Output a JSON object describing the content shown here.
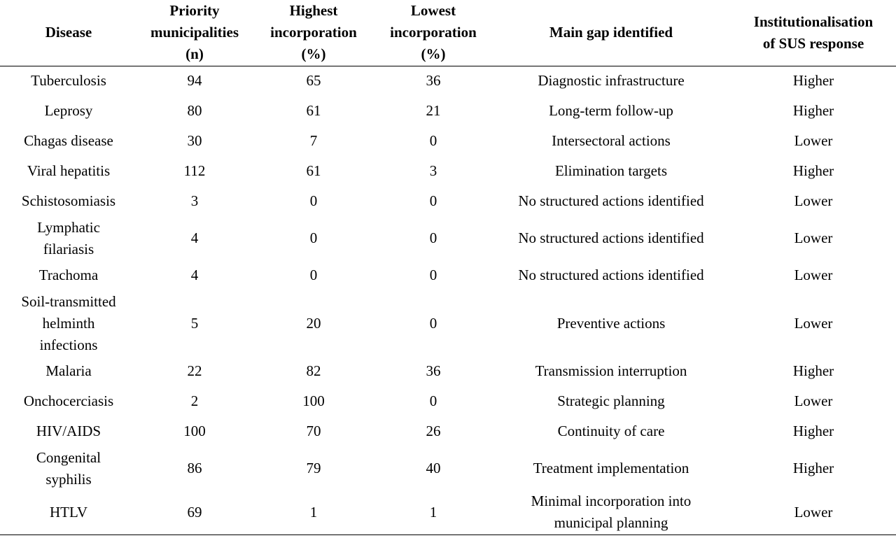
{
  "columns": [
    {
      "key": "disease",
      "label": "Disease"
    },
    {
      "key": "priority",
      "label": "Priority\nmunicipalities\n(n)"
    },
    {
      "key": "highest",
      "label": "Highest\nincorporation\n(%)"
    },
    {
      "key": "lowest",
      "label": "Lowest\nincorporation\n(%)"
    },
    {
      "key": "gap",
      "label": "Main gap identified"
    },
    {
      "key": "inst",
      "label": "Institutionalisation\nof SUS response"
    }
  ],
  "rows": [
    {
      "disease": "Tuberculosis",
      "priority": "94",
      "highest": "65",
      "lowest": "36",
      "gap": "Diagnostic infrastructure",
      "inst": "Higher"
    },
    {
      "disease": "Leprosy",
      "priority": "80",
      "highest": "61",
      "lowest": "21",
      "gap": "Long-term follow-up",
      "inst": "Higher"
    },
    {
      "disease": "Chagas disease",
      "priority": "30",
      "highest": "7",
      "lowest": "0",
      "gap": "Intersectoral actions",
      "inst": "Lower"
    },
    {
      "disease": "Viral hepatitis",
      "priority": "112",
      "highest": "61",
      "lowest": "3",
      "gap": "Elimination targets",
      "inst": "Higher"
    },
    {
      "disease": "Schistosomiasis",
      "priority": "3",
      "highest": "0",
      "lowest": "0",
      "gap": "No structured actions identified",
      "inst": "Lower"
    },
    {
      "disease": "Lymphatic\nfilariasis",
      "priority": "4",
      "highest": "0",
      "lowest": "0",
      "gap": "No structured actions identified",
      "inst": "Lower"
    },
    {
      "disease": "Trachoma",
      "priority": "4",
      "highest": "0",
      "lowest": "0",
      "gap": "No structured actions identified",
      "inst": "Lower"
    },
    {
      "disease": "Soil-transmitted\nhelminth\ninfections",
      "priority": "5",
      "highest": "20",
      "lowest": "0",
      "gap": "Preventive actions",
      "inst": "Lower"
    },
    {
      "disease": "Malaria",
      "priority": "22",
      "highest": "82",
      "lowest": "36",
      "gap": "Transmission interruption",
      "inst": "Higher"
    },
    {
      "disease": "Onchocerciasis",
      "priority": "2",
      "highest": "100",
      "lowest": "0",
      "gap": "Strategic planning",
      "inst": "Lower"
    },
    {
      "disease": "HIV/AIDS",
      "priority": "100",
      "highest": "70",
      "lowest": "26",
      "gap": "Continuity of care",
      "inst": "Higher"
    },
    {
      "disease": "Congenital\nsyphilis",
      "priority": "86",
      "highest": "79",
      "lowest": "40",
      "gap": "Treatment implementation",
      "inst": "Higher"
    },
    {
      "disease": "HTLV",
      "priority": "69",
      "highest": "1",
      "lowest": "1",
      "gap": "Minimal incorporation into\nmunicipal planning",
      "inst": "Lower"
    }
  ]
}
